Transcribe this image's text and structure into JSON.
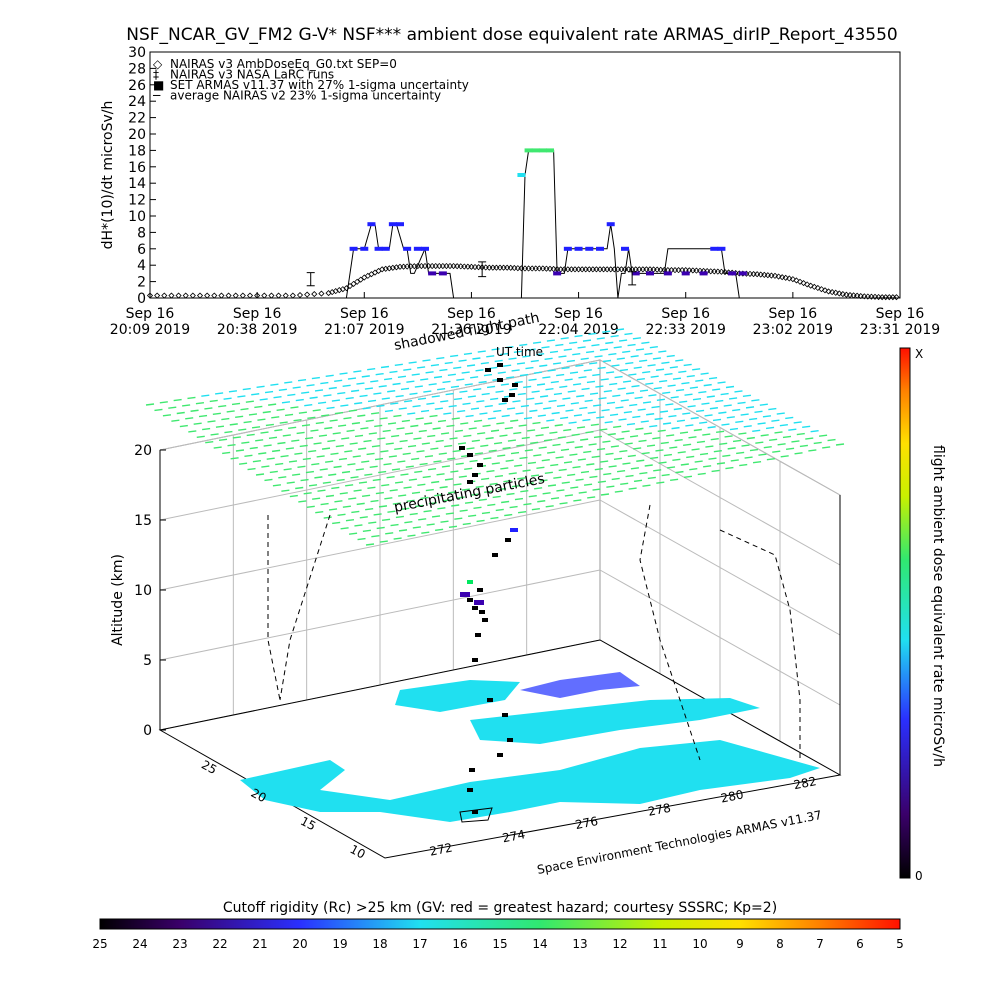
{
  "title": "NSF_NCAR_GV_FM2 G-V* NSF*** ambient dose equivalent rate ARMAS_dirIP_Report_43550",
  "colors": {
    "armas_low": "#3b00b0",
    "armas_mid": "#2020ff",
    "armas_high": "#00e860",
    "nairas": "#000000",
    "cyan": "#20e0f0",
    "green": "#40e870"
  },
  "top_chart": {
    "type": "line",
    "ylabel": "dH*(10)/dt microSv/h",
    "ylim": [
      0,
      30
    ],
    "yticks": [
      0,
      2,
      4,
      6,
      8,
      10,
      12,
      14,
      16,
      18,
      20,
      22,
      24,
      26,
      28,
      30
    ],
    "xticks": [
      {
        "line1": "Sep 16",
        "line2": "20:09 2019"
      },
      {
        "line1": "Sep 16",
        "line2": "20:38 2019"
      },
      {
        "line1": "Sep 16",
        "line2": "21:07 2019"
      },
      {
        "line1": "Sep 16",
        "line2": "21:36 2019"
      },
      {
        "line1": "Sep 16",
        "line2": "22:04 2019"
      },
      {
        "line1": "Sep 16",
        "line2": "22:33 2019"
      },
      {
        "line1": "Sep 16",
        "line2": "23:02 2019"
      },
      {
        "line1": "Sep 16",
        "line2": "23:31 2019"
      }
    ],
    "legend": [
      {
        "symbol": "◇",
        "text": "NAIRAS v3 AmbDoseEq_G0.txt SEP=0"
      },
      {
        "symbol": "‡",
        "text": "NAIRAS v3 NASA LaRC runs"
      },
      {
        "symbol": "■",
        "text": "SET ARMAS v11.37 with 27% 1-sigma uncertainty"
      },
      {
        "symbol": "─",
        "text": "average NAIRAS v2 23% 1-sigma uncertainty"
      }
    ],
    "xlim": [
      0,
      210
    ],
    "nairas_v3": {
      "x": [
        0,
        10,
        20,
        30,
        40,
        50,
        55,
        60,
        65,
        70,
        75,
        80,
        85,
        90,
        95,
        100,
        105,
        110,
        115,
        120,
        125,
        130,
        135,
        140,
        145,
        150,
        155,
        160,
        165,
        170,
        175,
        180,
        185,
        190,
        195,
        200,
        205,
        210
      ],
      "y": [
        0.3,
        0.3,
        0.3,
        0.3,
        0.3,
        0.6,
        1.2,
        2.5,
        3.5,
        3.8,
        3.9,
        3.9,
        3.9,
        3.8,
        3.7,
        3.7,
        3.6,
        3.6,
        3.5,
        3.5,
        3.5,
        3.5,
        3.5,
        3.5,
        3.4,
        3.4,
        3.3,
        3.2,
        3.0,
        2.9,
        2.7,
        2.3,
        1.5,
        0.8,
        0.4,
        0.2,
        0.1,
        0.1
      ]
    },
    "armas_line": {
      "x": [
        0,
        55,
        56,
        57,
        60,
        62,
        63,
        64,
        67,
        68,
        69,
        71,
        72,
        73,
        74,
        77,
        78,
        84,
        85,
        104,
        105,
        106,
        107,
        113,
        114,
        116,
        117,
        118,
        128,
        129,
        130,
        131,
        132,
        133,
        134,
        135,
        136,
        137,
        140,
        144,
        145,
        160,
        161,
        162,
        163,
        164,
        165,
        166,
        167,
        168,
        169
      ],
      "y": [
        0,
        0,
        3,
        6,
        6,
        9,
        9,
        6,
        6,
        9,
        9,
        6,
        6,
        3,
        3,
        6,
        3,
        3,
        0,
        0,
        15,
        18,
        18,
        18,
        3,
        3,
        6,
        6,
        6,
        9,
        6,
        0,
        3,
        3,
        6,
        3,
        3,
        3,
        3,
        3,
        6,
        6,
        3,
        3,
        3,
        3,
        0,
        0,
        0,
        0,
        0
      ]
    },
    "armas_points": [
      {
        "x": 57,
        "y": 6,
        "c": "armas_mid"
      },
      {
        "x": 60,
        "y": 6,
        "c": "armas_mid"
      },
      {
        "x": 62,
        "y": 9,
        "c": "armas_mid"
      },
      {
        "x": 64,
        "y": 6,
        "c": "armas_mid"
      },
      {
        "x": 66,
        "y": 6,
        "c": "armas_mid"
      },
      {
        "x": 68,
        "y": 9,
        "c": "armas_mid"
      },
      {
        "x": 70,
        "y": 9,
        "c": "armas_mid"
      },
      {
        "x": 72,
        "y": 6,
        "c": "armas_mid"
      },
      {
        "x": 75,
        "y": 6,
        "c": "armas_mid"
      },
      {
        "x": 77,
        "y": 6,
        "c": "armas_mid"
      },
      {
        "x": 79,
        "y": 3,
        "c": "armas_low"
      },
      {
        "x": 82,
        "y": 3,
        "c": "armas_low"
      },
      {
        "x": 104,
        "y": 15,
        "c": "cyan"
      },
      {
        "x": 106,
        "y": 18,
        "c": "green"
      },
      {
        "x": 108,
        "y": 18,
        "c": "green"
      },
      {
        "x": 110,
        "y": 18,
        "c": "green"
      },
      {
        "x": 112,
        "y": 18,
        "c": "green"
      },
      {
        "x": 114,
        "y": 3,
        "c": "armas_low"
      },
      {
        "x": 117,
        "y": 6,
        "c": "armas_mid"
      },
      {
        "x": 120,
        "y": 6,
        "c": "armas_mid"
      },
      {
        "x": 123,
        "y": 6,
        "c": "armas_mid"
      },
      {
        "x": 126,
        "y": 6,
        "c": "armas_mid"
      },
      {
        "x": 129,
        "y": 9,
        "c": "armas_mid"
      },
      {
        "x": 133,
        "y": 6,
        "c": "armas_mid"
      },
      {
        "x": 136,
        "y": 3,
        "c": "armas_low"
      },
      {
        "x": 140,
        "y": 3,
        "c": "armas_low"
      },
      {
        "x": 145,
        "y": 3,
        "c": "armas_low"
      },
      {
        "x": 150,
        "y": 3,
        "c": "armas_low"
      },
      {
        "x": 155,
        "y": 3,
        "c": "armas_low"
      },
      {
        "x": 158,
        "y": 6,
        "c": "armas_mid"
      },
      {
        "x": 160,
        "y": 6,
        "c": "armas_mid"
      },
      {
        "x": 163,
        "y": 3,
        "c": "armas_low"
      },
      {
        "x": 166,
        "y": 3,
        "c": "armas_low"
      }
    ],
    "error_bars": [
      {
        "x": 45,
        "y": 2.3,
        "err": 0.8
      },
      {
        "x": 93,
        "y": 3.5,
        "err": 0.9
      },
      {
        "x": 135,
        "y": 2.4,
        "err": 0.8
      }
    ]
  },
  "scene": {
    "labels": {
      "flight_path": "shadowed flight path",
      "ut_time": "UT time",
      "precipitating": "precipitating particles",
      "credit": "Space Environment Technologies ARMAS v11.37"
    },
    "altitude_label": "Altitude (km)",
    "altitude_ticks": [
      "0",
      "5",
      "10",
      "15",
      "20"
    ],
    "lon_ticks": [
      "272",
      "274",
      "276",
      "278",
      "280",
      "282"
    ],
    "lat_ticks": [
      "10",
      "15",
      "20",
      "25"
    ]
  },
  "dose_colorbar": {
    "label": "flight ambient dose equivalent rate microSv/h",
    "top_label": "X",
    "bottom_label": "0"
  },
  "rigidity_colorbar": {
    "title": "Cutoff rigidity (Rc) >25 km (GV: red = greatest hazard; courtesy SSSRC; Kp=2)",
    "ticks": [
      "25",
      "24",
      "23",
      "22",
      "21",
      "20",
      "19",
      "18",
      "17",
      "16",
      "15",
      "14",
      "13",
      "12",
      "11",
      "10",
      "9",
      "8",
      "7",
      "6",
      "5"
    ]
  }
}
